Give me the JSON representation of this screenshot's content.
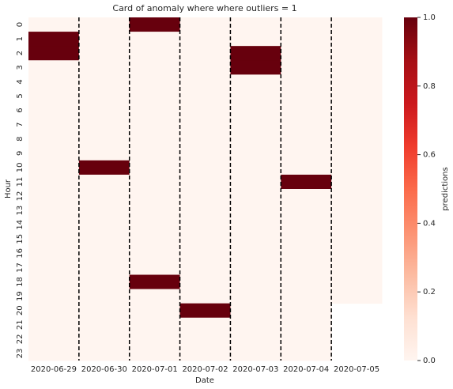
{
  "chart_data": {
    "type": "heatmap",
    "title": "Card of anomaly where where outliers = 1",
    "x_label": "Date",
    "y_label": "Hour",
    "categories": [
      "2020-06-29",
      "2020-06-30",
      "2020-07-01",
      "2020-07-02",
      "2020-07-03",
      "2020-07-04",
      "2020-07-05"
    ],
    "rows": [
      0,
      1,
      2,
      3,
      4,
      5,
      6,
      7,
      8,
      9,
      10,
      11,
      12,
      13,
      14,
      15,
      16,
      17,
      18,
      19,
      20,
      21,
      22,
      23
    ],
    "values": [
      [
        0,
        0,
        1,
        0,
        0,
        0,
        0
      ],
      [
        1,
        0,
        0,
        0,
        0,
        0,
        0
      ],
      [
        1,
        0,
        0,
        0,
        1,
        0,
        0
      ],
      [
        0,
        0,
        0,
        0,
        1,
        0,
        0
      ],
      [
        0,
        0,
        0,
        0,
        0,
        0,
        0
      ],
      [
        0,
        0,
        0,
        0,
        0,
        0,
        0
      ],
      [
        0,
        0,
        0,
        0,
        0,
        0,
        0
      ],
      [
        0,
        0,
        0,
        0,
        0,
        0,
        0
      ],
      [
        0,
        0,
        0,
        0,
        0,
        0,
        0
      ],
      [
        0,
        0,
        0,
        0,
        0,
        0,
        0
      ],
      [
        0,
        1,
        0,
        0,
        0,
        0,
        0
      ],
      [
        0,
        0,
        0,
        0,
        0,
        1,
        0
      ],
      [
        0,
        0,
        0,
        0,
        0,
        0,
        0
      ],
      [
        0,
        0,
        0,
        0,
        0,
        0,
        0
      ],
      [
        0,
        0,
        0,
        0,
        0,
        0,
        0
      ],
      [
        0,
        0,
        0,
        0,
        0,
        0,
        0
      ],
      [
        0,
        0,
        0,
        0,
        0,
        0,
        0
      ],
      [
        0,
        0,
        0,
        0,
        0,
        0,
        0
      ],
      [
        0,
        0,
        1,
        0,
        0,
        0,
        0
      ],
      [
        0,
        0,
        0,
        0,
        0,
        0,
        0
      ],
      [
        0,
        0,
        0,
        1,
        0,
        0,
        null
      ],
      [
        0,
        0,
        0,
        0,
        0,
        0,
        null
      ],
      [
        0,
        0,
        0,
        0,
        0,
        0,
        null
      ],
      [
        0,
        0,
        0,
        0,
        0,
        0,
        null
      ]
    ],
    "colorbar_label": "predictions",
    "clim": [
      0,
      1
    ],
    "cticks": [
      {
        "value": 0,
        "label": "0.0"
      },
      {
        "value": 0.2,
        "label": "0.2"
      },
      {
        "value": 0.4,
        "label": "0.4"
      },
      {
        "value": 0.6,
        "label": "0.6"
      },
      {
        "value": 0.8,
        "label": "0.8"
      },
      {
        "value": 1,
        "label": "1.0"
      }
    ],
    "colormap": [
      "#fff5f0",
      "#fee0d2",
      "#fcbba1",
      "#fc9272",
      "#fb6a4a",
      "#ef3b2c",
      "#cb181d",
      "#a50f15",
      "#67000d"
    ]
  }
}
